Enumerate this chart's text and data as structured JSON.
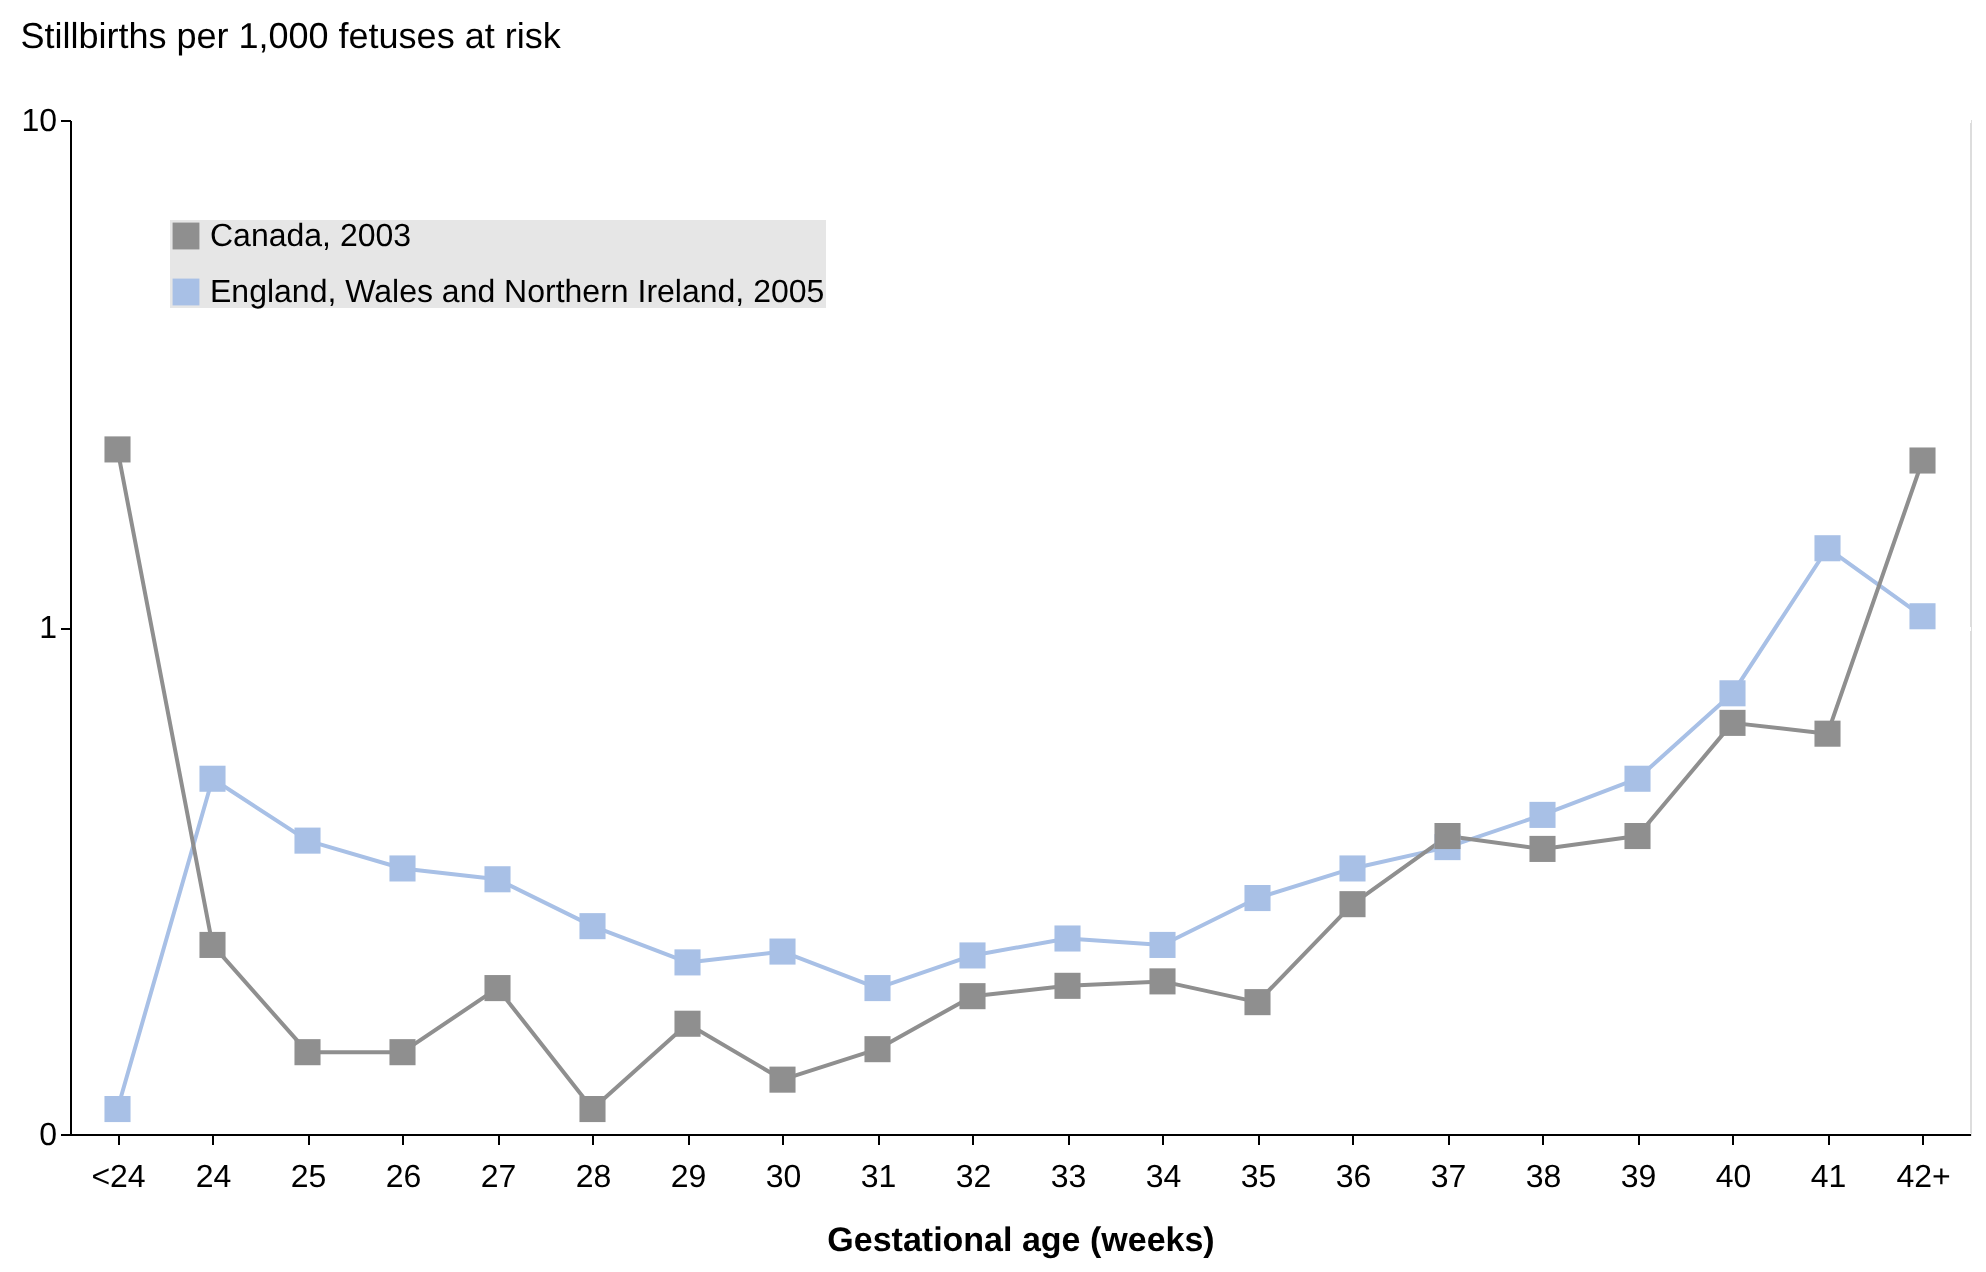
{
  "chart_data": {
    "type": "line",
    "title": "Stillbirths per 1,000 fetuses at risk",
    "xlabel": "Gestational age (weeks)",
    "categories": [
      "<24",
      "24",
      "25",
      "26",
      "27",
      "28",
      "29",
      "30",
      "31",
      "32",
      "33",
      "34",
      "35",
      "36",
      "37",
      "38",
      "39",
      "40",
      "41",
      "42+"
    ],
    "series": [
      {
        "name": "Canada, 2003",
        "color": "#8f8f8f",
        "values": [
          2.24,
          0.236,
          0.145,
          0.145,
          0.194,
          0.112,
          0.165,
          0.128,
          0.147,
          0.187,
          0.196,
          0.2,
          0.182,
          0.284,
          0.387,
          0.365,
          0.387,
          0.647,
          0.616,
          2.13
        ]
      },
      {
        "name": "England, Wales and Northern Ireland, 2005",
        "color": "#a8c0e6",
        "values": [
          0.112,
          0.502,
          0.379,
          0.334,
          0.318,
          0.257,
          0.218,
          0.229,
          0.194,
          0.225,
          0.243,
          0.236,
          0.292,
          0.334,
          0.368,
          0.426,
          0.502,
          0.74,
          1.43,
          1.05
        ]
      }
    ],
    "log": true,
    "ylim": [
      0.1,
      10
    ],
    "yticks": [
      {
        "value": 0.1,
        "label": "0"
      },
      1,
      10
    ],
    "grid": "y",
    "legend": "top left",
    "marker": "square",
    "line_style": "solid"
  }
}
